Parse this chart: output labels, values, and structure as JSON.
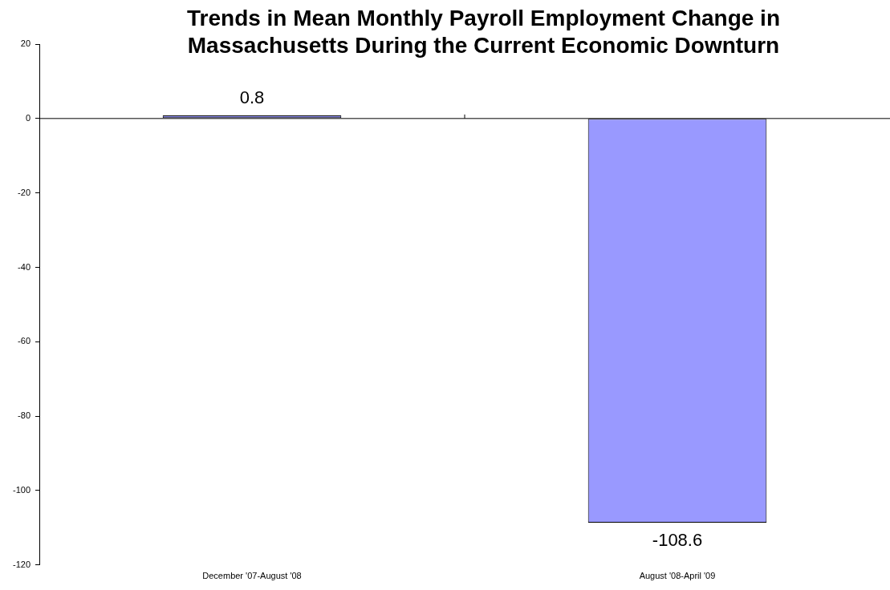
{
  "chart_data": {
    "type": "bar",
    "title": "Trends in Mean Monthly Payroll Employment Change in Massachusetts During the Current Economic Downturn",
    "categories": [
      "December '07-August '08",
      "August '08-April '09"
    ],
    "values": [
      0.8,
      -108.6
    ],
    "color": "#9999ff",
    "ylim": [
      -120,
      20
    ],
    "yticks": [
      -120,
      -100,
      -80,
      -60,
      -40,
      -20,
      0,
      20
    ],
    "data_labels": true,
    "legend": false
  }
}
